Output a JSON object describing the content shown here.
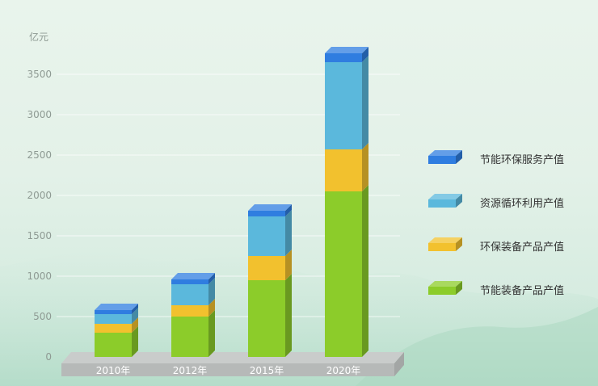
{
  "chart_data": {
    "type": "bar",
    "stacked": true,
    "unit_label": "亿元",
    "categories": [
      "2010年",
      "2012年",
      "2015年",
      "2020年"
    ],
    "yticks": [
      0,
      500,
      1000,
      1500,
      2000,
      2500,
      3000,
      3500
    ],
    "ylim": [
      0,
      4000
    ],
    "grid": true,
    "legend_position": "right",
    "series": [
      {
        "name": "节能装备产品产值",
        "color": "#8ccc2a",
        "values": [
          300,
          500,
          950,
          2050
        ]
      },
      {
        "name": "环保装备产品产值",
        "color": "#f2c12e",
        "values": [
          110,
          140,
          300,
          520
        ]
      },
      {
        "name": "资源循环利用产值",
        "color": "#5bb8dc",
        "values": [
          120,
          260,
          490,
          1080
        ]
      },
      {
        "name": "节能环保服务产值",
        "color": "#2f7de0",
        "values": [
          50,
          60,
          70,
          110
        ]
      }
    ]
  }
}
